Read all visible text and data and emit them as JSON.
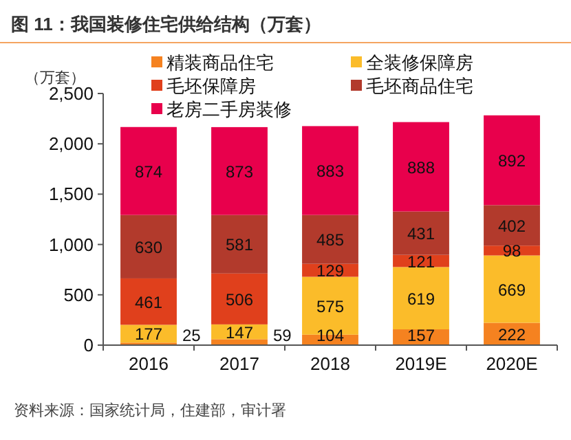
{
  "chart_data": {
    "type": "bar",
    "stacked": true,
    "title": "图 11：我国装修住宅供给结构（万套）",
    "ylabel": "（万套）",
    "categories": [
      "2016",
      "2017",
      "2018",
      "2019E",
      "2020E"
    ],
    "series": [
      {
        "name": "精装商品住宅",
        "color": "#f58220",
        "values": [
          25,
          59,
          104,
          157,
          222
        ]
      },
      {
        "name": "全装修保障房",
        "color": "#fbbc2a",
        "values": [
          177,
          147,
          575,
          619,
          669
        ]
      },
      {
        "name": "毛坯保障房",
        "color": "#e0401c",
        "values": [
          461,
          506,
          129,
          121,
          98
        ]
      },
      {
        "name": "毛坯商品住宅",
        "color": "#b23a2c",
        "values": [
          630,
          581,
          485,
          431,
          402
        ]
      },
      {
        "name": "老房二手房装修",
        "color": "#e8004c",
        "values": [
          874,
          873,
          883,
          888,
          892
        ]
      }
    ],
    "ylim": [
      0,
      2500
    ],
    "yticks": [
      0,
      500,
      {
        "value": 1000,
        "label": "1,000"
      },
      {
        "value": 1500,
        "label": "1,500"
      },
      {
        "value": 2000,
        "label": "2,000"
      },
      {
        "value": 2500,
        "label": "2,500"
      }
    ],
    "data_labels": true,
    "legend": "top",
    "grid": false,
    "annotations": [
      "资料来源：国家统计局，住建部，审计署"
    ]
  }
}
